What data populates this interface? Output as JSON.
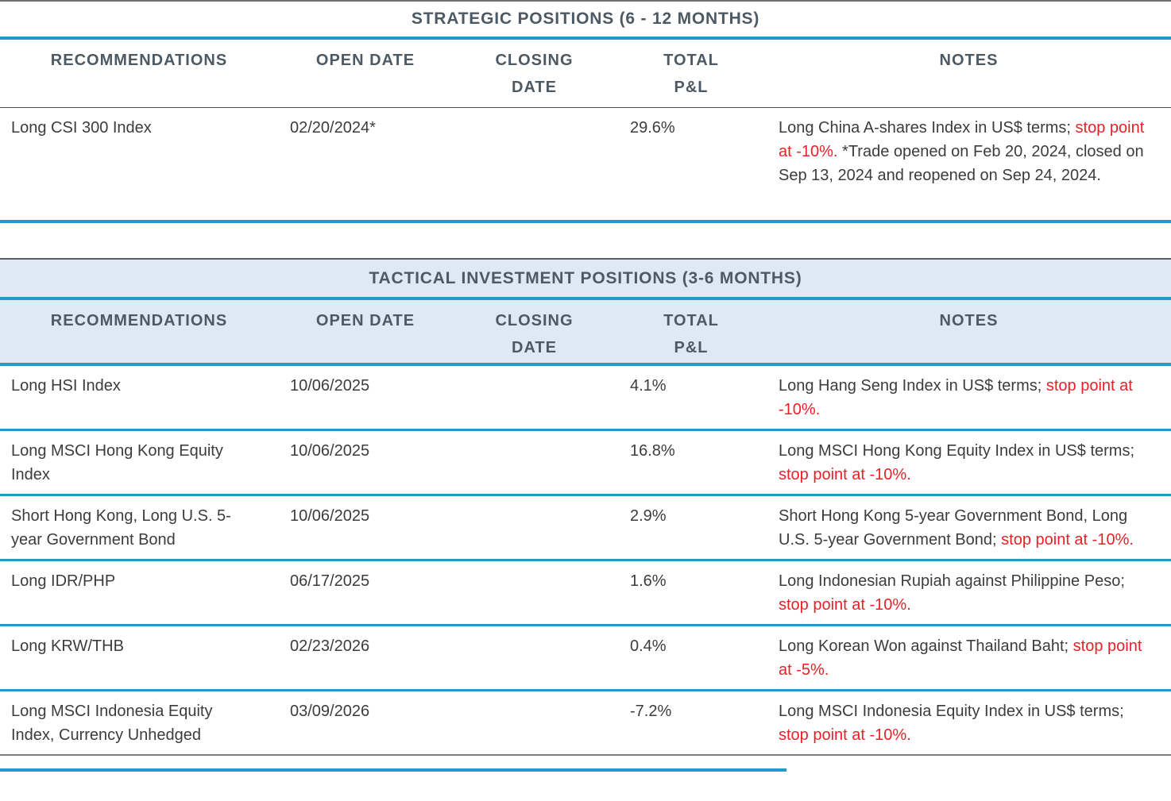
{
  "palette": {
    "accent_blue": "#2598ca",
    "light_blue_background": "#ddeaf5",
    "heading_text": "#4d5963",
    "body_text": "#3c3c3c",
    "alert_red": "#e82128"
  },
  "columns": [
    "RECOMMENDATIONS",
    "OPEN DATE",
    "CLOSING\nDATE",
    "TOTAL\nP&L",
    "NOTES"
  ],
  "sections": [
    {
      "id": "strategic",
      "title": "STRATEGIC POSITIONS (6 - 12 MONTHS)",
      "rows": [
        {
          "recommendation": "Long CSI 300 Index",
          "open_date": "02/20/2024*",
          "closing_date": "",
          "total_pl": "29.6%",
          "notes": [
            {
              "text": "Long China A-shares Index in US$ terms; ",
              "red": false
            },
            {
              "text": "stop point at -10%.",
              "red": true
            },
            {
              "text": " *Trade opened on Feb 20, 2024, closed on Sep 13, 2024 and reopened on Sep 24, 2024.",
              "red": false
            }
          ]
        }
      ]
    },
    {
      "id": "tactical",
      "title": "TACTICAL INVESTMENT POSITIONS (3-6 MONTHS)",
      "rows": [
        {
          "recommendation": "Long HSI Index",
          "open_date": "10/06/2025",
          "closing_date": "",
          "total_pl": "4.1%",
          "notes": [
            {
              "text": "Long Hang Seng Index in US$ terms; ",
              "red": false
            },
            {
              "text": "stop point at -10%.",
              "red": true
            }
          ]
        },
        {
          "recommendation": "Long MSCI Hong Kong Equity Index",
          "open_date": "10/06/2025",
          "closing_date": "",
          "total_pl": "16.8%",
          "notes": [
            {
              "text": "Long MSCI Hong Kong Equity Index in US$ terms; ",
              "red": false
            },
            {
              "text": "stop point at -10%.",
              "red": true
            }
          ]
        },
        {
          "recommendation": "Short Hong Kong, Long U.S. 5-year Government Bond",
          "open_date": "10/06/2025",
          "closing_date": "",
          "total_pl": "2.9%",
          "notes": [
            {
              "text": "Short Hong Kong 5-year Government Bond, Long U.S. 5-year Government Bond; ",
              "red": false
            },
            {
              "text": "stop point at -10%.",
              "red": true
            }
          ]
        },
        {
          "recommendation": "Long IDR/PHP",
          "open_date": "06/17/2025",
          "closing_date": "",
          "total_pl": "1.6%",
          "notes": [
            {
              "text": "Long Indonesian Rupiah against Philippine Peso; ",
              "red": false
            },
            {
              "text": "stop point at -10%.",
              "red": true
            }
          ]
        },
        {
          "recommendation": "Long KRW/THB",
          "open_date": "02/23/2026",
          "closing_date": "",
          "total_pl": "0.4%",
          "notes": [
            {
              "text": "Long Korean Won against Thailand Baht; ",
              "red": false
            },
            {
              "text": "stop point at -5%.",
              "red": true
            }
          ]
        },
        {
          "recommendation": "Long MSCI Indonesia Equity Index, Currency Unhedged",
          "open_date": "03/09/2026",
          "closing_date": "",
          "total_pl": "-7.2%",
          "notes": [
            {
              "text": "Long MSCI Indonesia Equity Index in US$ terms; ",
              "red": false
            },
            {
              "text": "stop point at -10%.",
              "red": true
            }
          ]
        }
      ]
    }
  ]
}
